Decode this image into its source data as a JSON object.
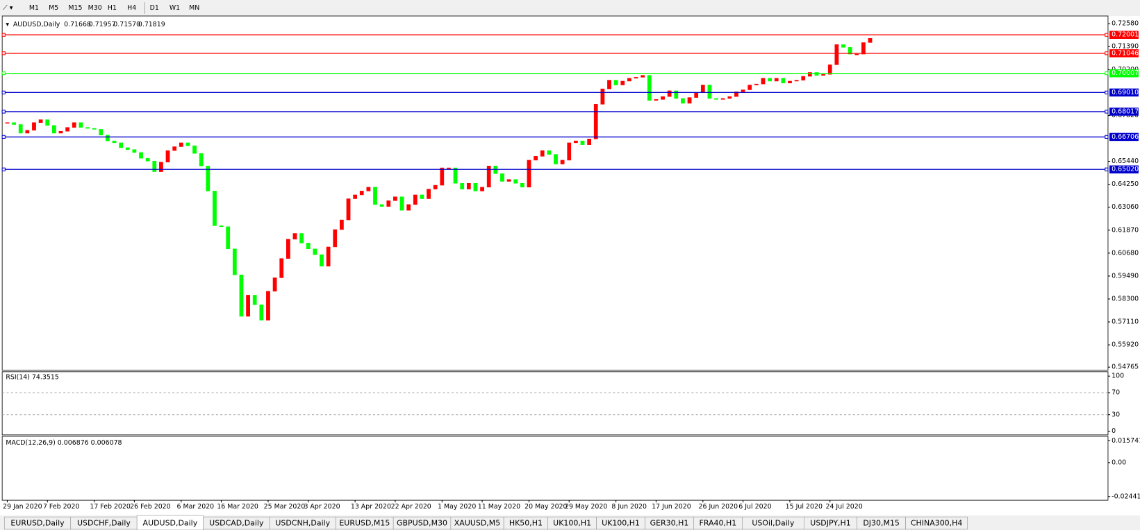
{
  "toolbar": {
    "timeframes": [
      "M1",
      "M5",
      "M15",
      "M30",
      "H1",
      "H4",
      "D1",
      "W1",
      "MN"
    ]
  },
  "chart": {
    "type": "candlestick",
    "symbol": "AUDUSD,Daily",
    "ohlc_header": [
      "0.71668",
      "0.71957",
      "0.71570",
      "0.71819"
    ],
    "up_color": "#ff0000",
    "down_color": "#00ff00",
    "ylim": [
      0.5464,
      0.7298
    ],
    "yticks": [
      {
        "value": 0.7258,
        "label": "0.72580"
      },
      {
        "value": 0.7139,
        "label": "0.71390"
      },
      {
        "value": 0.702,
        "label": "0.70200"
      },
      {
        "value": 0.6782,
        "label": "0.67820"
      },
      {
        "value": 0.6544,
        "label": "0.65440"
      },
      {
        "value": 0.6425,
        "label": "0.64250"
      },
      {
        "value": 0.6306,
        "label": "0.63060"
      },
      {
        "value": 0.6187,
        "label": "0.61870"
      },
      {
        "value": 0.6068,
        "label": "0.60680"
      },
      {
        "value": 0.5949,
        "label": "0.59490"
      },
      {
        "value": 0.583,
        "label": "0.58300"
      },
      {
        "value": 0.5711,
        "label": "0.57110"
      },
      {
        "value": 0.5592,
        "label": "0.55920"
      },
      {
        "value": 0.54765,
        "label": "0.54765"
      }
    ],
    "levels": [
      {
        "value": 0.72001,
        "label": "0.72001",
        "color": "#ff0000"
      },
      {
        "value": 0.71046,
        "label": "0.71046",
        "color": "#ff0000"
      },
      {
        "value": 0.70007,
        "label": "0.70007",
        "color": "#00ff00"
      },
      {
        "value": 0.6901,
        "label": "0.69010",
        "color": "#0000cc"
      },
      {
        "value": 0.68017,
        "label": "0.68017",
        "color": "#0000cc"
      },
      {
        "value": 0.66706,
        "label": "0.66706",
        "color": "#0000cc"
      },
      {
        "value": 0.6502,
        "label": "0.65020",
        "color": "#0000cc"
      }
    ],
    "categories": [
      "29 Jan 2020",
      null,
      null,
      null,
      null,
      null,
      "7 Feb 2020",
      null,
      null,
      null,
      null,
      null,
      null,
      "17 Feb 2020",
      null,
      null,
      null,
      null,
      null,
      "26 Feb 2020",
      null,
      null,
      null,
      null,
      null,
      null,
      "6 Mar 2020",
      null,
      null,
      null,
      null,
      null,
      "16 Mar 2020",
      null,
      null,
      null,
      null,
      null,
      null,
      "25 Mar 2020",
      null,
      null,
      null,
      null,
      null,
      "3 Apr 2020",
      null,
      null,
      null,
      null,
      null,
      null,
      "13 Apr 2020",
      null,
      null,
      null,
      null,
      null,
      "22 Apr 2020",
      null,
      null,
      null,
      null,
      null,
      null,
      "1 May 2020",
      null,
      null,
      null,
      null,
      null,
      "11 May 2020",
      null,
      null,
      null,
      null,
      null,
      null,
      "20 May 2020",
      null,
      null,
      null,
      null,
      null,
      "29 May 2020",
      null,
      null,
      null,
      null,
      null,
      null,
      "8 Jun 2020",
      null,
      null,
      null,
      null,
      null,
      "17 Jun 2020",
      null,
      null,
      null,
      null,
      null,
      null,
      "26 Jun 2020",
      null,
      null,
      null,
      null,
      null,
      "6 Jul 2020",
      null,
      null,
      null,
      null,
      null,
      null,
      "15 Jul 2020",
      null,
      null,
      null,
      null,
      null,
      "24 Jul 2020",
      null,
      null,
      null,
      null,
      null,
      null
    ],
    "values": [
      0.6745,
      0.6735,
      0.669,
      0.6705,
      0.6745,
      0.676,
      0.673,
      0.669,
      0.67,
      0.672,
      0.6745,
      0.672,
      0.6715,
      0.671,
      0.668,
      0.665,
      0.664,
      0.6615,
      0.6605,
      0.659,
      0.656,
      0.6545,
      0.649,
      0.654,
      0.66,
      0.662,
      0.664,
      0.6625,
      0.6585,
      0.652,
      0.639,
      0.621,
      0.6205,
      0.609,
      0.5955,
      0.574,
      0.585,
      0.58,
      0.572,
      0.587,
      0.594,
      0.604,
      0.614,
      0.617,
      0.612,
      0.609,
      0.606,
      0.6,
      0.61,
      0.619,
      0.624,
      0.635,
      0.637,
      0.639,
      0.641,
      0.632,
      0.631,
      0.634,
      0.636,
      0.629,
      0.632,
      0.637,
      0.635,
      0.64,
      0.642,
      0.651,
      0.651,
      0.643,
      0.64,
      0.643,
      0.639,
      0.641,
      0.652,
      0.648,
      0.644,
      0.645,
      0.643,
      0.641,
      0.655,
      0.657,
      0.66,
      0.658,
      0.653,
      0.655,
      0.664,
      0.665,
      0.663,
      0.666,
      0.684,
      0.692,
      0.6965,
      0.694,
      0.696,
      0.6975,
      0.698,
      0.699,
      0.686,
      0.6865,
      0.688,
      0.691,
      0.687,
      0.6845,
      0.6875,
      0.69,
      0.694,
      0.687,
      0.6865,
      0.687,
      0.688,
      0.6905,
      0.6915,
      0.694,
      0.6945,
      0.6975,
      0.696,
      0.6975,
      0.695,
      0.696,
      0.6965,
      0.6985,
      0.7005,
      0.699,
      0.6995,
      0.7045,
      0.715,
      0.7135,
      0.71,
      0.71,
      0.716,
      0.7182
    ]
  },
  "rsi": {
    "label": "RSI(14) 74.3515",
    "ylim": [
      -6.7,
      108
    ],
    "yticks": [
      100,
      70,
      30,
      0
    ],
    "levels": [
      70,
      30
    ]
  },
  "macd": {
    "label": "MACD(12,26,9) 0.006876 0.006078",
    "ylim": [
      -0.02705,
      0.01891
    ],
    "yticks": [
      {
        "value": 0.015741,
        "label": "0.015741"
      },
      {
        "value": 0,
        "label": "0.00"
      },
      {
        "value": -0.024412,
        "label": "-0.024412"
      }
    ]
  },
  "tabs": {
    "items": [
      "EURUSD,Daily",
      "USDCHF,Daily",
      "AUDUSD,Daily",
      "USDCAD,Daily",
      "USDCNH,Daily",
      "EURUSD,M15",
      "GBPUSD,M30",
      "XAUUSD,M5",
      "HK50,H1",
      "UK100,H1",
      "UK100,H1",
      "GER30,H1",
      "FRA40,H1",
      "USOil,Daily",
      "USDJPY,H1",
      "DJ30,M15",
      "CHINA300,H4"
    ],
    "active": "AUDUSD,Daily"
  }
}
